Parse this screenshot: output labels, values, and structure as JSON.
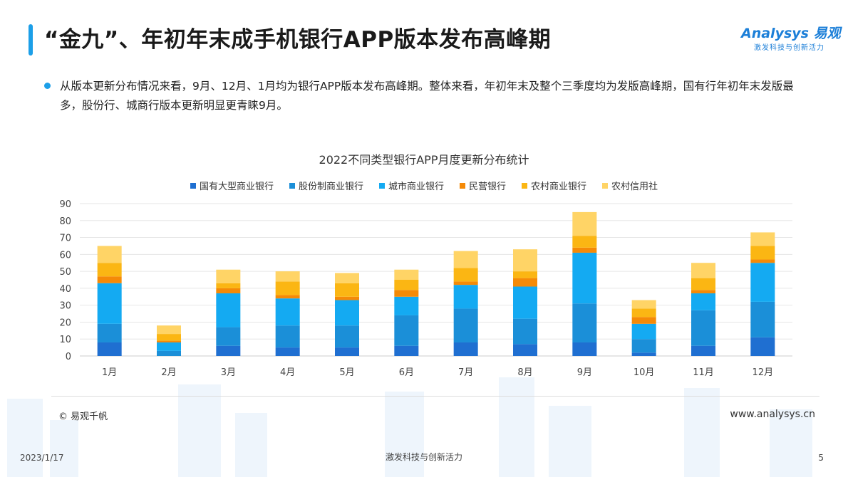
{
  "header": {
    "title": "“金九”、年初年末成手机银行APP版本发布高峰期",
    "logo_main": "Analysys 易观",
    "logo_sub": "激发科技与创新活力"
  },
  "summary": {
    "text": "从版本更新分布情况来看，9月、12月、1月均为银行APP版本发布高峰期。整体来看，年初年末及整个三季度均为发版高峰期，国有行年初年末发版最多，股份行、城商行版本更新明显更青睐9月。"
  },
  "colors": {
    "accent": "#1c9fe8",
    "series": [
      "#1f6fd1",
      "#1b8fd8",
      "#14aaf2",
      "#f58a07",
      "#fbb613",
      "#ffd466"
    ]
  },
  "chart_data": {
    "type": "bar",
    "stacked": true,
    "title": "2022不同类型银行APP月度更新分布统计",
    "categories": [
      "1月",
      "2月",
      "3月",
      "4月",
      "5月",
      "6月",
      "7月",
      "8月",
      "9月",
      "10月",
      "11月",
      "12月"
    ],
    "ylim": [
      0,
      90
    ],
    "yticks": [
      "0",
      "10",
      "20",
      "30",
      "40",
      "50",
      "60",
      "70",
      "80",
      "90"
    ],
    "grid": true,
    "legend_position": "top",
    "series": [
      {
        "name": "国有大型商业银行",
        "values": [
          8,
          0,
          6,
          5,
          5,
          6,
          8,
          7,
          8,
          2,
          6,
          11
        ]
      },
      {
        "name": "股份制商业银行",
        "values": [
          11,
          3,
          11,
          13,
          13,
          18,
          20,
          15,
          23,
          8,
          21,
          21
        ]
      },
      {
        "name": "城市商业银行",
        "values": [
          24,
          5,
          20,
          16,
          15,
          11,
          14,
          19,
          30,
          9,
          10,
          23
        ]
      },
      {
        "name": "民营银行",
        "values": [
          4,
          1,
          3,
          2,
          2,
          4,
          2,
          5,
          3,
          4,
          2,
          2
        ]
      },
      {
        "name": "农村商业银行",
        "values": [
          8,
          4,
          3,
          8,
          8,
          6,
          8,
          4,
          7,
          5,
          7,
          8
        ]
      },
      {
        "name": "农村信用社",
        "values": [
          10,
          5,
          8,
          6,
          6,
          6,
          10,
          13,
          14,
          5,
          9,
          8
        ]
      }
    ]
  },
  "footer": {
    "copyright": "© 易观千帆",
    "site": "www.analysys.cn",
    "date": "2023/1/17",
    "slogan": "激发科技与创新活力",
    "page": "5"
  }
}
